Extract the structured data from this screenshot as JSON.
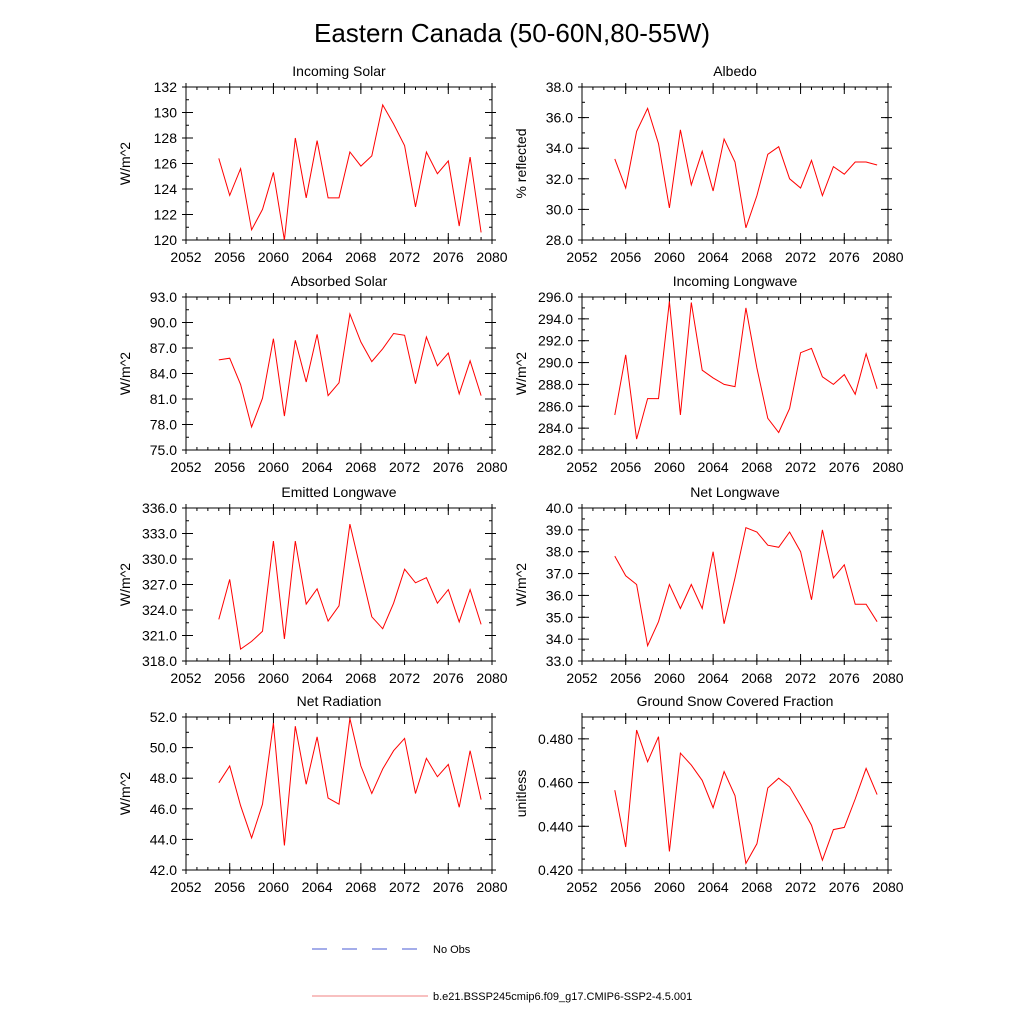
{
  "figure": {
    "title": "Eastern Canada (50-60N,80-55W)",
    "legend": [
      {
        "label": "No Obs",
        "color": "#4a5bd4",
        "style": "dashed"
      },
      {
        "label": "b.e21.BSSP245cmip6.f09_g17.CMIP6-SSP2-4.5.001",
        "color": "#f08080",
        "style": "solid"
      }
    ]
  },
  "chart_data": [
    {
      "type": "line",
      "title": "Incoming Solar",
      "xlabel": "",
      "ylabel": "W/m^2",
      "xlim": [
        2052,
        2080
      ],
      "ylim": [
        120,
        132
      ],
      "xticks": [
        2052,
        2056,
        2060,
        2064,
        2068,
        2072,
        2076,
        2080
      ],
      "yticks": [
        "120",
        "122",
        "124",
        "126",
        "128",
        "130",
        "132"
      ],
      "yminor": 1,
      "xminor": 1,
      "color": "#ff0000",
      "x": [
        2055,
        2056,
        2057,
        2058,
        2059,
        2060,
        2061,
        2062,
        2063,
        2064,
        2065,
        2066,
        2067,
        2068,
        2069,
        2070,
        2071,
        2072,
        2073,
        2074,
        2075,
        2076,
        2077,
        2078,
        2079
      ],
      "series": [
        {
          "values": [
            126.4,
            123.5,
            125.6,
            120.8,
            122.4,
            125.3,
            120.0,
            128.0,
            123.3,
            127.8,
            123.3,
            123.3,
            126.9,
            125.8,
            126.6,
            130.6,
            129.1,
            127.4,
            122.6,
            126.9,
            125.2,
            126.2,
            121.1,
            126.5,
            120.6
          ]
        }
      ]
    },
    {
      "type": "line",
      "title": "Albedo",
      "xlabel": "",
      "ylabel": "% reflected",
      "xlim": [
        2052,
        2080
      ],
      "ylim": [
        28,
        38
      ],
      "xticks": [
        2052,
        2056,
        2060,
        2064,
        2068,
        2072,
        2076,
        2080
      ],
      "yticks": [
        "28.0",
        "30.0",
        "32.0",
        "34.0",
        "36.0",
        "38.0"
      ],
      "yminor": 1,
      "xminor": 1,
      "color": "#ff0000",
      "x": [
        2055,
        2056,
        2057,
        2058,
        2059,
        2060,
        2061,
        2062,
        2063,
        2064,
        2065,
        2066,
        2067,
        2068,
        2069,
        2070,
        2071,
        2072,
        2073,
        2074,
        2075,
        2076,
        2077,
        2078,
        2079
      ],
      "series": [
        {
          "values": [
            33.3,
            31.4,
            35.1,
            36.6,
            34.3,
            30.1,
            35.2,
            31.6,
            33.8,
            31.2,
            34.6,
            33.1,
            28.8,
            30.9,
            33.6,
            34.1,
            32.0,
            31.4,
            33.2,
            30.9,
            32.8,
            32.3,
            33.1,
            33.1,
            32.9
          ]
        }
      ]
    },
    {
      "type": "line",
      "title": "Absorbed Solar",
      "xlabel": "",
      "ylabel": "W/m^2",
      "xlim": [
        2052,
        2080
      ],
      "ylim": [
        75,
        93
      ],
      "xticks": [
        2052,
        2056,
        2060,
        2064,
        2068,
        2072,
        2076,
        2080
      ],
      "yticks": [
        "75.0",
        "78.0",
        "81.0",
        "84.0",
        "87.0",
        "90.0",
        "93.0"
      ],
      "yminor": 1.5,
      "xminor": 1,
      "color": "#ff0000",
      "x": [
        2055,
        2056,
        2057,
        2058,
        2059,
        2060,
        2061,
        2062,
        2063,
        2064,
        2065,
        2066,
        2067,
        2068,
        2069,
        2070,
        2071,
        2072,
        2073,
        2074,
        2075,
        2076,
        2077,
        2078,
        2079
      ],
      "series": [
        {
          "values": [
            85.6,
            85.8,
            82.7,
            77.7,
            81.1,
            88.1,
            79.0,
            87.9,
            83.0,
            88.6,
            81.4,
            82.9,
            91.0,
            87.7,
            85.4,
            86.9,
            88.7,
            88.5,
            82.8,
            88.3,
            84.9,
            86.4,
            81.6,
            85.5,
            81.4
          ]
        }
      ]
    },
    {
      "type": "line",
      "title": "Incoming Longwave",
      "xlabel": "",
      "ylabel": "W/m^2",
      "xlim": [
        2052,
        2080
      ],
      "ylim": [
        282,
        296
      ],
      "xticks": [
        2052,
        2056,
        2060,
        2064,
        2068,
        2072,
        2076,
        2080
      ],
      "yticks": [
        "282.0",
        "284.0",
        "286.0",
        "288.0",
        "290.0",
        "292.0",
        "294.0",
        "296.0"
      ],
      "yminor": 1,
      "xminor": 1,
      "color": "#ff0000",
      "x": [
        2055,
        2056,
        2057,
        2058,
        2059,
        2060,
        2061,
        2062,
        2063,
        2064,
        2065,
        2066,
        2067,
        2068,
        2069,
        2070,
        2071,
        2072,
        2073,
        2074,
        2075,
        2076,
        2077,
        2078,
        2079
      ],
      "series": [
        {
          "values": [
            285.2,
            290.7,
            283.0,
            286.7,
            286.7,
            295.6,
            285.2,
            295.5,
            289.3,
            288.6,
            288.0,
            287.8,
            295.0,
            289.5,
            284.9,
            283.6,
            285.8,
            290.9,
            291.3,
            288.7,
            288.0,
            288.9,
            287.1,
            290.8,
            287.6
          ]
        }
      ]
    },
    {
      "type": "line",
      "title": "Emitted Longwave",
      "xlabel": "",
      "ylabel": "W/m^2",
      "xlim": [
        2052,
        2080
      ],
      "ylim": [
        318,
        336
      ],
      "xticks": [
        2052,
        2056,
        2060,
        2064,
        2068,
        2072,
        2076,
        2080
      ],
      "yticks": [
        "318.0",
        "321.0",
        "324.0",
        "327.0",
        "330.0",
        "333.0",
        "336.0"
      ],
      "yminor": 1.5,
      "xminor": 1,
      "color": "#ff0000",
      "x": [
        2055,
        2056,
        2057,
        2058,
        2059,
        2060,
        2061,
        2062,
        2063,
        2064,
        2065,
        2066,
        2067,
        2068,
        2069,
        2070,
        2071,
        2072,
        2073,
        2074,
        2075,
        2076,
        2077,
        2078,
        2079
      ],
      "series": [
        {
          "values": [
            322.9,
            327.6,
            319.4,
            320.3,
            321.5,
            332.1,
            320.6,
            332.1,
            324.7,
            326.5,
            322.7,
            324.5,
            334.1,
            328.6,
            323.2,
            321.8,
            324.8,
            328.8,
            327.2,
            327.8,
            324.8,
            326.4,
            322.6,
            326.4,
            322.3
          ]
        }
      ]
    },
    {
      "type": "line",
      "title": "Net Longwave",
      "xlabel": "",
      "ylabel": "W/m^2",
      "xlim": [
        2052,
        2080
      ],
      "ylim": [
        33,
        40
      ],
      "xticks": [
        2052,
        2056,
        2060,
        2064,
        2068,
        2072,
        2076,
        2080
      ],
      "yticks": [
        "33.0",
        "34.0",
        "35.0",
        "36.0",
        "37.0",
        "38.0",
        "39.0",
        "40.0"
      ],
      "yminor": 0.5,
      "xminor": 1,
      "color": "#ff0000",
      "x": [
        2055,
        2056,
        2057,
        2058,
        2059,
        2060,
        2061,
        2062,
        2063,
        2064,
        2065,
        2066,
        2067,
        2068,
        2069,
        2070,
        2071,
        2072,
        2073,
        2074,
        2075,
        2076,
        2077,
        2078,
        2079
      ],
      "series": [
        {
          "values": [
            37.8,
            36.9,
            36.5,
            33.7,
            34.8,
            36.5,
            35.4,
            36.5,
            35.4,
            38.0,
            34.7,
            36.8,
            39.1,
            38.9,
            38.3,
            38.2,
            38.9,
            38.0,
            35.8,
            39.0,
            36.8,
            37.4,
            35.6,
            35.6,
            34.8
          ]
        }
      ]
    },
    {
      "type": "line",
      "title": "Net Radiation",
      "xlabel": "",
      "ylabel": "W/m^2",
      "xlim": [
        2052,
        2080
      ],
      "ylim": [
        42,
        52
      ],
      "xticks": [
        2052,
        2056,
        2060,
        2064,
        2068,
        2072,
        2076,
        2080
      ],
      "yticks": [
        "42.0",
        "44.0",
        "46.0",
        "48.0",
        "50.0",
        "52.0"
      ],
      "yminor": 1,
      "xminor": 1,
      "color": "#ff0000",
      "x": [
        2055,
        2056,
        2057,
        2058,
        2059,
        2060,
        2061,
        2062,
        2063,
        2064,
        2065,
        2066,
        2067,
        2068,
        2069,
        2070,
        2071,
        2072,
        2073,
        2074,
        2075,
        2076,
        2077,
        2078,
        2079
      ],
      "series": [
        {
          "values": [
            47.7,
            48.8,
            46.2,
            44.1,
            46.3,
            51.6,
            43.6,
            51.4,
            47.6,
            50.7,
            46.7,
            46.3,
            51.9,
            48.8,
            47.0,
            48.6,
            49.8,
            50.6,
            47.0,
            49.3,
            48.1,
            48.9,
            46.1,
            49.8,
            46.6
          ]
        }
      ]
    },
    {
      "type": "line",
      "title": "Ground Snow Covered Fraction",
      "xlabel": "",
      "ylabel": "unitless",
      "xlim": [
        2052,
        2080
      ],
      "ylim": [
        0.42,
        0.49
      ],
      "xticks": [
        2052,
        2056,
        2060,
        2064,
        2068,
        2072,
        2076,
        2080
      ],
      "yticks": [
        "0.420",
        "0.440",
        "0.460",
        "0.480"
      ],
      "yminor": 0.005,
      "xminor": 1,
      "color": "#ff0000",
      "x": [
        2055,
        2056,
        2057,
        2058,
        2059,
        2060,
        2061,
        2062,
        2063,
        2064,
        2065,
        2066,
        2067,
        2068,
        2069,
        2070,
        2071,
        2072,
        2073,
        2074,
        2075,
        2076,
        2077,
        2078,
        2079
      ],
      "series": [
        {
          "values": [
            0.4565,
            0.4305,
            0.484,
            0.4695,
            0.481,
            0.4285,
            0.4735,
            0.468,
            0.461,
            0.4485,
            0.465,
            0.454,
            0.423,
            0.432,
            0.4575,
            0.462,
            0.458,
            0.4495,
            0.4405,
            0.4245,
            0.4385,
            0.4395,
            0.4525,
            0.4665,
            0.4545
          ]
        }
      ]
    }
  ]
}
